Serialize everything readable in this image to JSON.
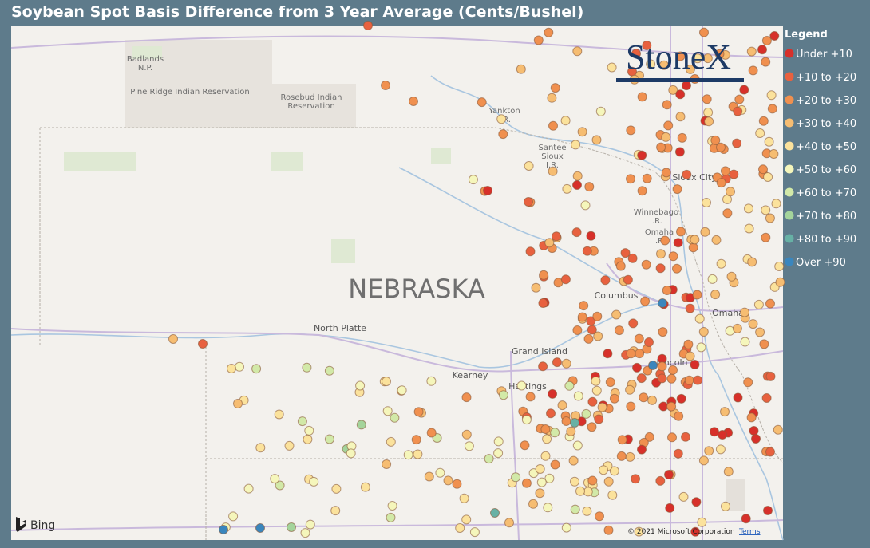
{
  "header": {
    "title": "Soybean Spot Basis Difference from 3 Year Average (Cents/Bushel)"
  },
  "logo": "StoneX",
  "map": {
    "labels": {
      "badlands": "Badlands",
      "badlands_np": "N.P.",
      "pine_ridge": "Pine Ridge Indian Reservation",
      "rosebud": "Rosebud Indian",
      "rosebud2": "Reservation",
      "yankton": "Yankton",
      "yankton_ir": "I.R.",
      "santee": "Santee",
      "santee2": "Sioux",
      "santee_ir": "I.R.",
      "sioux_city": "Sioux City",
      "winnebago": "Winnebago",
      "winnebago_ir": "I.R.",
      "omaha_ir": "Omaha",
      "omaha_ir2": "I.R.",
      "state": "NEBRASKA",
      "north_platte": "North Platte",
      "columbus": "Columbus",
      "omaha": "Omaha",
      "grand_island": "Grand Island",
      "kearney": "Kearney",
      "hastings": "Hastings",
      "lincoln": "Lincoln"
    }
  },
  "legend": {
    "title": "Legend",
    "items": [
      {
        "label": "Under +10",
        "color": "#d7302a"
      },
      {
        "label": "+10 to +20",
        "color": "#e8613f"
      },
      {
        "label": "+20 to +30",
        "color": "#f0904f"
      },
      {
        "label": "+30 to +40",
        "color": "#f6bd72"
      },
      {
        "label": "+40 to +50",
        "color": "#fbe29c"
      },
      {
        "label": "+50 to +60",
        "color": "#f5f6bb"
      },
      {
        "label": "+60 to +70",
        "color": "#d2e9a8"
      },
      {
        "label": "+70 to +80",
        "color": "#a4d49b"
      },
      {
        "label": "+80 to +90",
        "color": "#67b1a5"
      },
      {
        "label": "Over +90",
        "color": "#3a86bd"
      }
    ]
  },
  "attribution": {
    "provider": "Bing",
    "copyright": "© 2021 Microsoft Corporation",
    "terms": "Terms"
  }
}
